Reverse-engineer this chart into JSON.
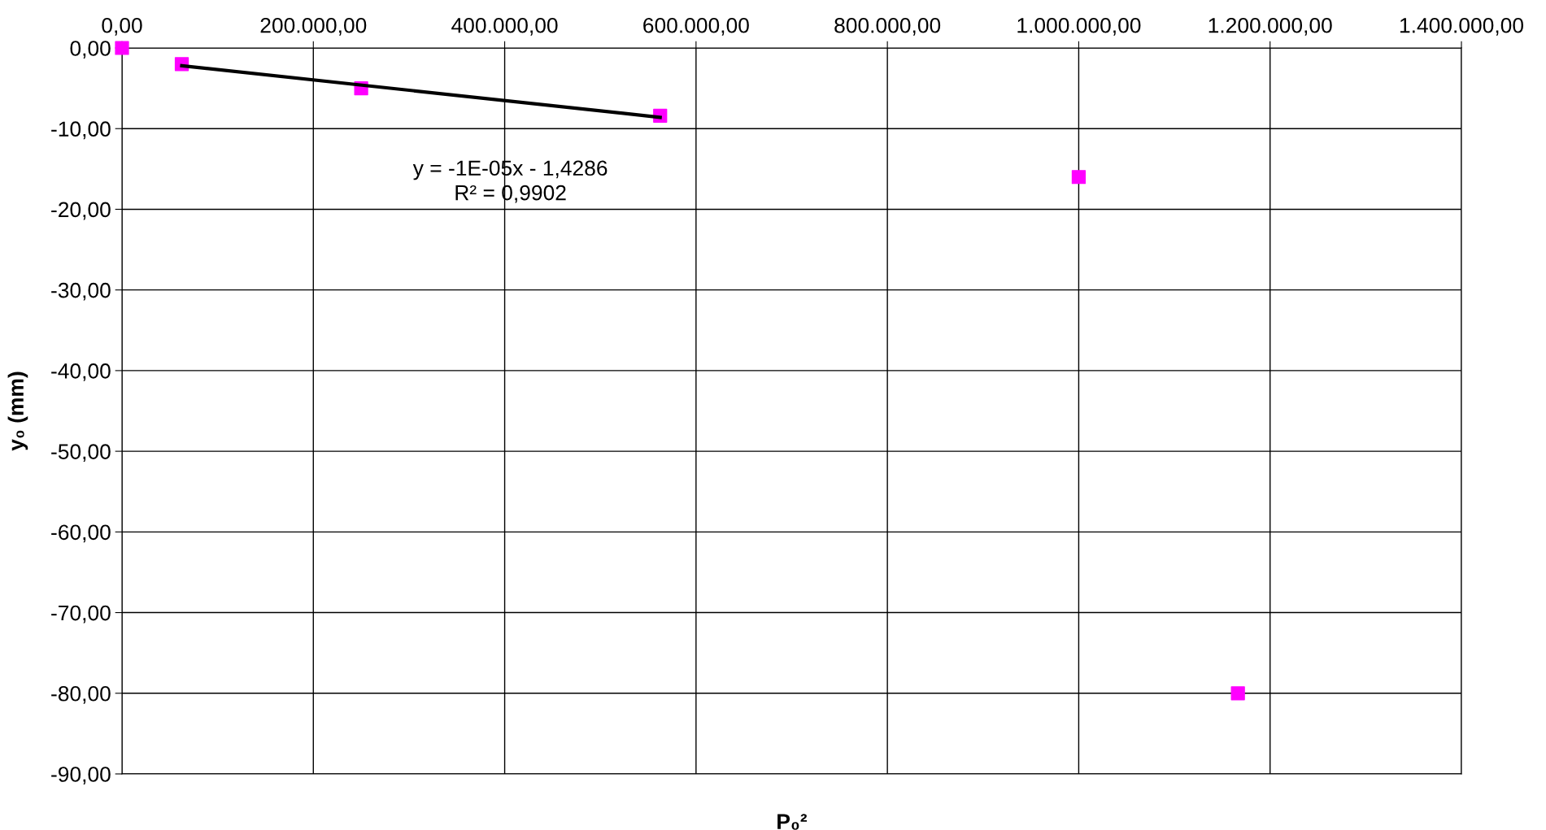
{
  "chart_data": {
    "type": "scatter",
    "xlabel": "P₀²",
    "ylabel": "y₀ (mm)",
    "annotations": [
      "y = -1E-05x - 1,4286\nR² = 0,9902"
    ],
    "series": [
      {
        "color": "#ff00ff",
        "marker": "square",
        "x": [
          0,
          62500,
          250000,
          562500,
          1000000,
          1166400
        ],
        "values": [
          0,
          -2,
          -5,
          -8.4,
          -16,
          -80
        ]
      },
      {
        "type": "line",
        "color": "#000000",
        "marker": "none",
        "line_style": "solid",
        "x": [
          62500,
          562500
        ],
        "values": [
          -2.2,
          -8.6
        ]
      }
    ],
    "xlim": [
      0,
      1400000
    ],
    "ylim": [
      -90,
      0
    ],
    "xticks": [
      {
        "value": 0,
        "label": "0,00"
      },
      {
        "value": 200000,
        "label": "200.000,00"
      },
      {
        "value": 400000,
        "label": "400.000,00"
      },
      {
        "value": 600000,
        "label": "600.000,00"
      },
      {
        "value": 800000,
        "label": "800.000,00"
      },
      {
        "value": 1000000,
        "label": "1.000.000,00"
      },
      {
        "value": 1200000,
        "label": "1.200.000,00"
      },
      {
        "value": 1400000,
        "label": "1.400.000,00"
      }
    ],
    "yticks": [
      {
        "value": 0,
        "label": "0,00"
      },
      {
        "value": -10,
        "label": "-10,00"
      },
      {
        "value": -20,
        "label": "-20,00"
      },
      {
        "value": -30,
        "label": "-30,00"
      },
      {
        "value": -40,
        "label": "-40,00"
      },
      {
        "value": -50,
        "label": "-50,00"
      },
      {
        "value": -60,
        "label": "-60,00"
      },
      {
        "value": -70,
        "label": "-70,00"
      },
      {
        "value": -80,
        "label": "-80,00"
      },
      {
        "value": -90,
        "label": "-90,00"
      }
    ],
    "grid": true
  }
}
